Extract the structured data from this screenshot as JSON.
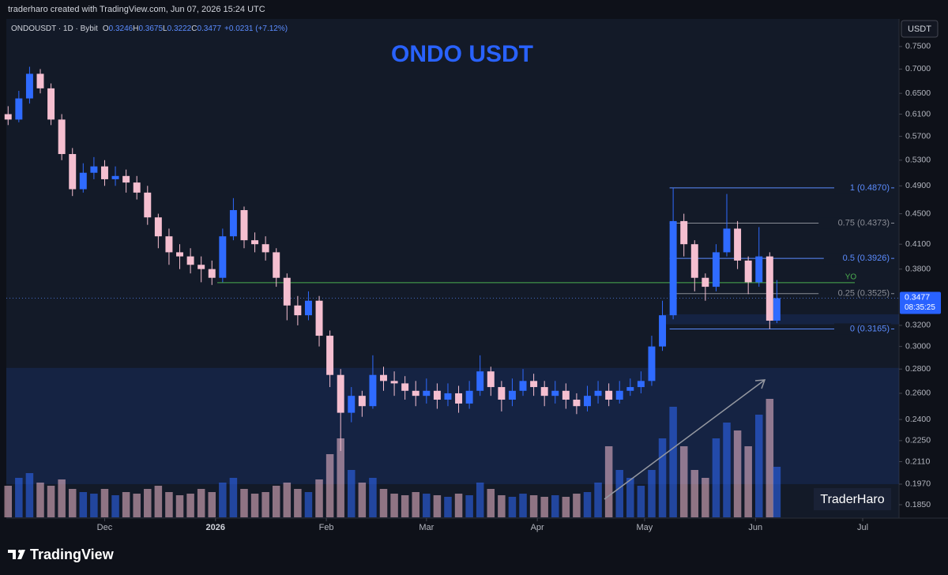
{
  "header": {
    "attribution": "traderharo created with TradingView.com, Jun 07, 2026 15:24 UTC"
  },
  "legend": {
    "symbol": "ONDOUSDT · 1D · Bybit",
    "items": [
      {
        "key": "O",
        "value": "0.3246"
      },
      {
        "key": "H",
        "value": "0.3675"
      },
      {
        "key": "L",
        "value": "0.3222"
      },
      {
        "key": "C",
        "value": "0.3477"
      }
    ],
    "change": "+0.0231 (+7.12%)"
  },
  "currency_button": "USDT",
  "watermark": "TraderHaro",
  "brand": "TradingView",
  "chart_data": {
    "type": "candlestick",
    "title": "ONDO USDT",
    "log_scale": true,
    "up_color": "#2f6bff",
    "down_color": "#f5bfd0",
    "x": [
      0,
      3,
      6,
      9,
      12,
      15,
      18,
      21,
      24,
      27,
      30,
      33,
      36,
      39,
      42,
      45,
      48,
      51,
      54,
      57,
      60,
      63,
      66,
      69,
      72,
      75,
      78,
      81,
      84,
      87,
      90,
      93,
      96,
      99,
      102,
      105,
      108,
      111,
      114,
      117,
      120,
      123,
      126,
      129,
      132,
      135,
      138,
      141,
      144,
      147,
      150,
      153,
      156,
      159,
      162,
      165,
      168,
      171,
      174,
      177,
      180,
      183,
      186,
      189,
      192,
      195,
      198,
      201,
      204,
      207,
      210,
      213,
      215
    ],
    "open": [
      0.61,
      0.6,
      0.64,
      0.69,
      0.66,
      0.6,
      0.54,
      0.485,
      0.51,
      0.52,
      0.5,
      0.505,
      0.495,
      0.48,
      0.445,
      0.42,
      0.4,
      0.395,
      0.385,
      0.38,
      0.37,
      0.42,
      0.455,
      0.415,
      0.41,
      0.4,
      0.37,
      0.34,
      0.33,
      0.345,
      0.31,
      0.275,
      0.245,
      0.258,
      0.25,
      0.275,
      0.27,
      0.268,
      0.262,
      0.258,
      0.262,
      0.255,
      0.26,
      0.252,
      0.262,
      0.278,
      0.265,
      0.255,
      0.262,
      0.27,
      0.265,
      0.258,
      0.262,
      0.255,
      0.25,
      0.258,
      0.262,
      0.255,
      0.262,
      0.265,
      0.27,
      0.3,
      0.33,
      0.44,
      0.41,
      0.37,
      0.36,
      0.4,
      0.43,
      0.39,
      0.365,
      0.395,
      0.3246
    ],
    "high": [
      0.625,
      0.655,
      0.705,
      0.7,
      0.67,
      0.61,
      0.55,
      0.525,
      0.535,
      0.53,
      0.52,
      0.515,
      0.505,
      0.49,
      0.45,
      0.43,
      0.41,
      0.405,
      0.395,
      0.39,
      0.43,
      0.472,
      0.46,
      0.425,
      0.42,
      0.405,
      0.375,
      0.35,
      0.355,
      0.35,
      0.315,
      0.28,
      0.265,
      0.262,
      0.292,
      0.282,
      0.278,
      0.274,
      0.27,
      0.272,
      0.268,
      0.268,
      0.266,
      0.27,
      0.292,
      0.282,
      0.27,
      0.272,
      0.28,
      0.276,
      0.27,
      0.27,
      0.268,
      0.26,
      0.266,
      0.27,
      0.268,
      0.27,
      0.272,
      0.278,
      0.31,
      0.345,
      0.487,
      0.45,
      0.415,
      0.375,
      0.41,
      0.478,
      0.44,
      0.395,
      0.432,
      0.4,
      0.3675
    ],
    "low": [
      0.59,
      0.595,
      0.63,
      0.65,
      0.59,
      0.53,
      0.475,
      0.48,
      0.5,
      0.49,
      0.49,
      0.48,
      0.47,
      0.435,
      0.405,
      0.385,
      0.38,
      0.375,
      0.365,
      0.362,
      0.365,
      0.415,
      0.405,
      0.4,
      0.39,
      0.36,
      0.325,
      0.32,
      0.325,
      0.3,
      0.265,
      0.218,
      0.238,
      0.242,
      0.248,
      0.262,
      0.258,
      0.255,
      0.25,
      0.252,
      0.248,
      0.25,
      0.245,
      0.248,
      0.258,
      0.258,
      0.246,
      0.25,
      0.258,
      0.258,
      0.25,
      0.252,
      0.248,
      0.244,
      0.246,
      0.252,
      0.25,
      0.252,
      0.258,
      0.26,
      0.266,
      0.296,
      0.326,
      0.395,
      0.355,
      0.345,
      0.355,
      0.395,
      0.38,
      0.352,
      0.36,
      0.3165,
      0.3222
    ],
    "close": [
      0.6,
      0.64,
      0.69,
      0.66,
      0.6,
      0.54,
      0.485,
      0.51,
      0.52,
      0.5,
      0.505,
      0.495,
      0.48,
      0.445,
      0.42,
      0.4,
      0.395,
      0.385,
      0.38,
      0.37,
      0.42,
      0.455,
      0.415,
      0.41,
      0.4,
      0.37,
      0.34,
      0.33,
      0.345,
      0.31,
      0.275,
      0.245,
      0.258,
      0.25,
      0.275,
      0.27,
      0.268,
      0.262,
      0.258,
      0.262,
      0.255,
      0.26,
      0.252,
      0.262,
      0.278,
      0.265,
      0.255,
      0.262,
      0.27,
      0.265,
      0.258,
      0.262,
      0.255,
      0.25,
      0.258,
      0.262,
      0.255,
      0.262,
      0.265,
      0.27,
      0.3,
      0.33,
      0.44,
      0.41,
      0.37,
      0.36,
      0.4,
      0.43,
      0.39,
      0.365,
      0.395,
      0.3246,
      0.3477
    ],
    "volume": [
      20,
      25,
      28,
      22,
      20,
      24,
      18,
      16,
      15,
      18,
      14,
      16,
      15,
      18,
      20,
      16,
      14,
      15,
      18,
      16,
      22,
      25,
      18,
      15,
      16,
      20,
      22,
      18,
      16,
      24,
      40,
      50,
      30,
      22,
      25,
      18,
      15,
      14,
      16,
      15,
      14,
      13,
      15,
      14,
      22,
      18,
      14,
      13,
      15,
      14,
      13,
      14,
      13,
      15,
      16,
      22,
      45,
      30,
      25,
      20,
      30,
      50,
      70,
      45,
      30,
      25,
      50,
      60,
      55,
      45,
      65,
      75,
      32
    ],
    "xlim": [
      -0.5,
      248.5
    ],
    "ylim": [
      0.178,
      0.808
    ],
    "xticks": [
      {
        "value": 27,
        "label": "Dec"
      },
      {
        "value": 58,
        "label": "2026"
      },
      {
        "value": 89,
        "label": "Feb"
      },
      {
        "value": 117,
        "label": "Mar"
      },
      {
        "value": 148,
        "label": "Apr"
      },
      {
        "value": 178,
        "label": "May"
      },
      {
        "value": 209,
        "label": "Jun"
      },
      {
        "value": 239,
        "label": "Jul"
      }
    ],
    "yticks": [
      {
        "value": 0.75,
        "label": "0.7500"
      },
      {
        "value": 0.7,
        "label": "0.7000"
      },
      {
        "value": 0.65,
        "label": "0.6500"
      },
      {
        "value": 0.61,
        "label": "0.6100"
      },
      {
        "value": 0.57,
        "label": "0.5700"
      },
      {
        "value": 0.53,
        "label": "0.5300"
      },
      {
        "value": 0.49,
        "label": "0.4900"
      },
      {
        "value": 0.45,
        "label": "0.4500"
      },
      {
        "value": 0.41,
        "label": "0.4100"
      },
      {
        "value": 0.38,
        "label": "0.3800"
      },
      {
        "value": 0.32,
        "label": "0.3200"
      },
      {
        "value": 0.3,
        "label": "0.3000"
      },
      {
        "value": 0.28,
        "label": "0.2800"
      },
      {
        "value": 0.26,
        "label": "0.2600"
      },
      {
        "value": 0.24,
        "label": "0.2400"
      },
      {
        "value": 0.225,
        "label": "0.2250"
      },
      {
        "value": 0.211,
        "label": "0.2110"
      },
      {
        "value": 0.197,
        "label": "0.1970"
      },
      {
        "value": 0.185,
        "label": "0.1850"
      }
    ],
    "last_price": {
      "value": 0.3477,
      "label": "0.3477",
      "countdown": "08:35:25"
    },
    "fib_levels": [
      {
        "label": "1 (0.4870)",
        "value": 0.487,
        "color": "#5b8cff",
        "from_x": 185
      },
      {
        "label": "0.75 (0.4373)",
        "value": 0.4373,
        "color": "#8a8d96",
        "from_x": 185
      },
      {
        "label": "0.5 (0.3926)",
        "value": 0.3926,
        "color": "#5b8cff",
        "from_x": 185
      },
      {
        "label": "0.25 (0.3525)",
        "value": 0.3525,
        "color": "#8a8d96",
        "from_x": 185
      },
      {
        "label": "0 (0.3165)",
        "value": 0.3165,
        "color": "#5b8cff",
        "from_x": 185
      }
    ],
    "levels": [
      {
        "label": "YO",
        "value": 0.3645,
        "color": "#4caf50",
        "from_x": 58.5
      }
    ],
    "zones": [
      {
        "top": 0.281,
        "bottom": 0.197
      },
      {
        "top": 0.331,
        "bottom": 0.321,
        "from_x": 183
      }
    ]
  }
}
